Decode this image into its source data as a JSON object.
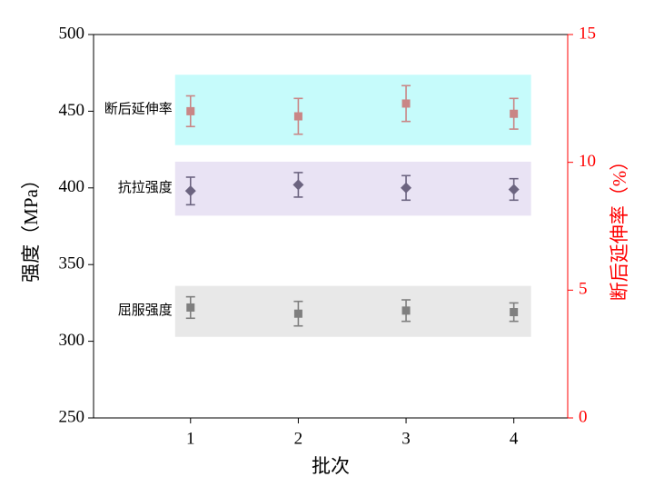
{
  "chart_data": {
    "type": "errorbar",
    "xlabel": "批次",
    "ylabel": "强度（MPa）",
    "y2label": "断后延伸率（%）",
    "x": [
      1,
      2,
      3,
      4
    ],
    "xlim": [
      0.1,
      4.5
    ],
    "xticks": [
      1,
      2,
      3,
      4
    ],
    "ylim": [
      250,
      500
    ],
    "yticks": [
      250,
      300,
      350,
      400,
      450,
      500
    ],
    "y2lim": [
      0,
      15
    ],
    "y2ticks": [
      0,
      5,
      10,
      15
    ],
    "y2color": "#ff0000",
    "series": [
      {
        "name": "屈服强度",
        "color": "#7f7f7f",
        "band_color": "#e8e8e8",
        "marker": "square",
        "values": [
          322,
          318,
          320,
          319
        ],
        "errors": [
          7,
          8,
          7,
          6
        ]
      },
      {
        "name": "抗拉强度",
        "color": "#6c6480",
        "band_color": "#e9e3f4",
        "marker": "diamond",
        "values": [
          398,
          402,
          400,
          399
        ],
        "errors": [
          9,
          8,
          8,
          7
        ]
      },
      {
        "name": "断后延伸率",
        "color": "#c98686",
        "band_color": "#c6fbfb",
        "marker": "square",
        "axis": "y2",
        "values": [
          12.0,
          11.8,
          12.3,
          11.9
        ],
        "errors": [
          0.6,
          0.7,
          0.7,
          0.6
        ]
      }
    ]
  }
}
